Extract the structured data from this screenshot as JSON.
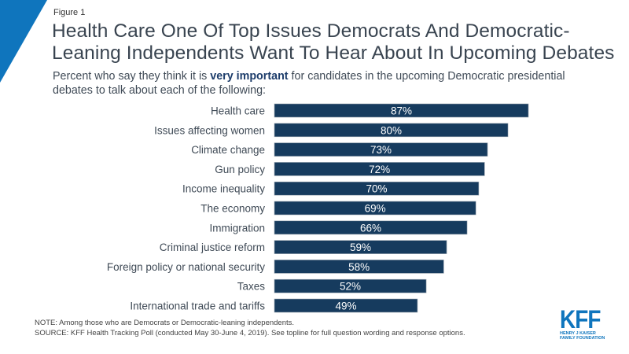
{
  "figure_label": "Figure 1",
  "title_line1": "Health Care One Of Top Issues Democrats And Democratic-",
  "title_line2": "Leaning Independents Want To Hear About In Upcoming Debates",
  "subtitle_pre": "Percent who say they think it is ",
  "subtitle_bold": "very important",
  "subtitle_post": " for candidates in the upcoming Democratic presidential",
  "subtitle_line2": "debates to talk about each of the following:",
  "note": "NOTE: Among those who are Democrats or Democratic-leaning independents.",
  "source": "SOURCE: KFF Health Tracking Poll (conducted May 30-June 4, 2019). See topline for full question wording and response options.",
  "logo": {
    "name": "KFF",
    "line1": "HENRY J KAISER",
    "line2": "FAMILY FOUNDATION"
  },
  "colors": {
    "bar": "#163b5e",
    "accent": "#0f75bd",
    "label_text": "#ffffff"
  },
  "chart_data": {
    "type": "bar",
    "orientation": "horizontal",
    "title": "Health Care One Of Top Issues Democrats And Democratic-Leaning Independents Want To Hear About In Upcoming Debates",
    "xlabel": "",
    "ylabel": "",
    "unit": "%",
    "categories": [
      "Health care",
      "Issues affecting women",
      "Climate change",
      "Gun policy",
      "Income inequality",
      "The economy",
      "Immigration",
      "Criminal justice reform",
      "Foreign policy or national security",
      "Taxes",
      "International trade and tariffs"
    ],
    "values": [
      87,
      80,
      73,
      72,
      70,
      69,
      66,
      59,
      58,
      52,
      49
    ],
    "data_labels": [
      "87%",
      "80%",
      "73%",
      "72%",
      "70%",
      "69%",
      "66%",
      "59%",
      "58%",
      "52%",
      "49%"
    ],
    "xlim": [
      0,
      100
    ],
    "grid": false,
    "legend": "none"
  }
}
